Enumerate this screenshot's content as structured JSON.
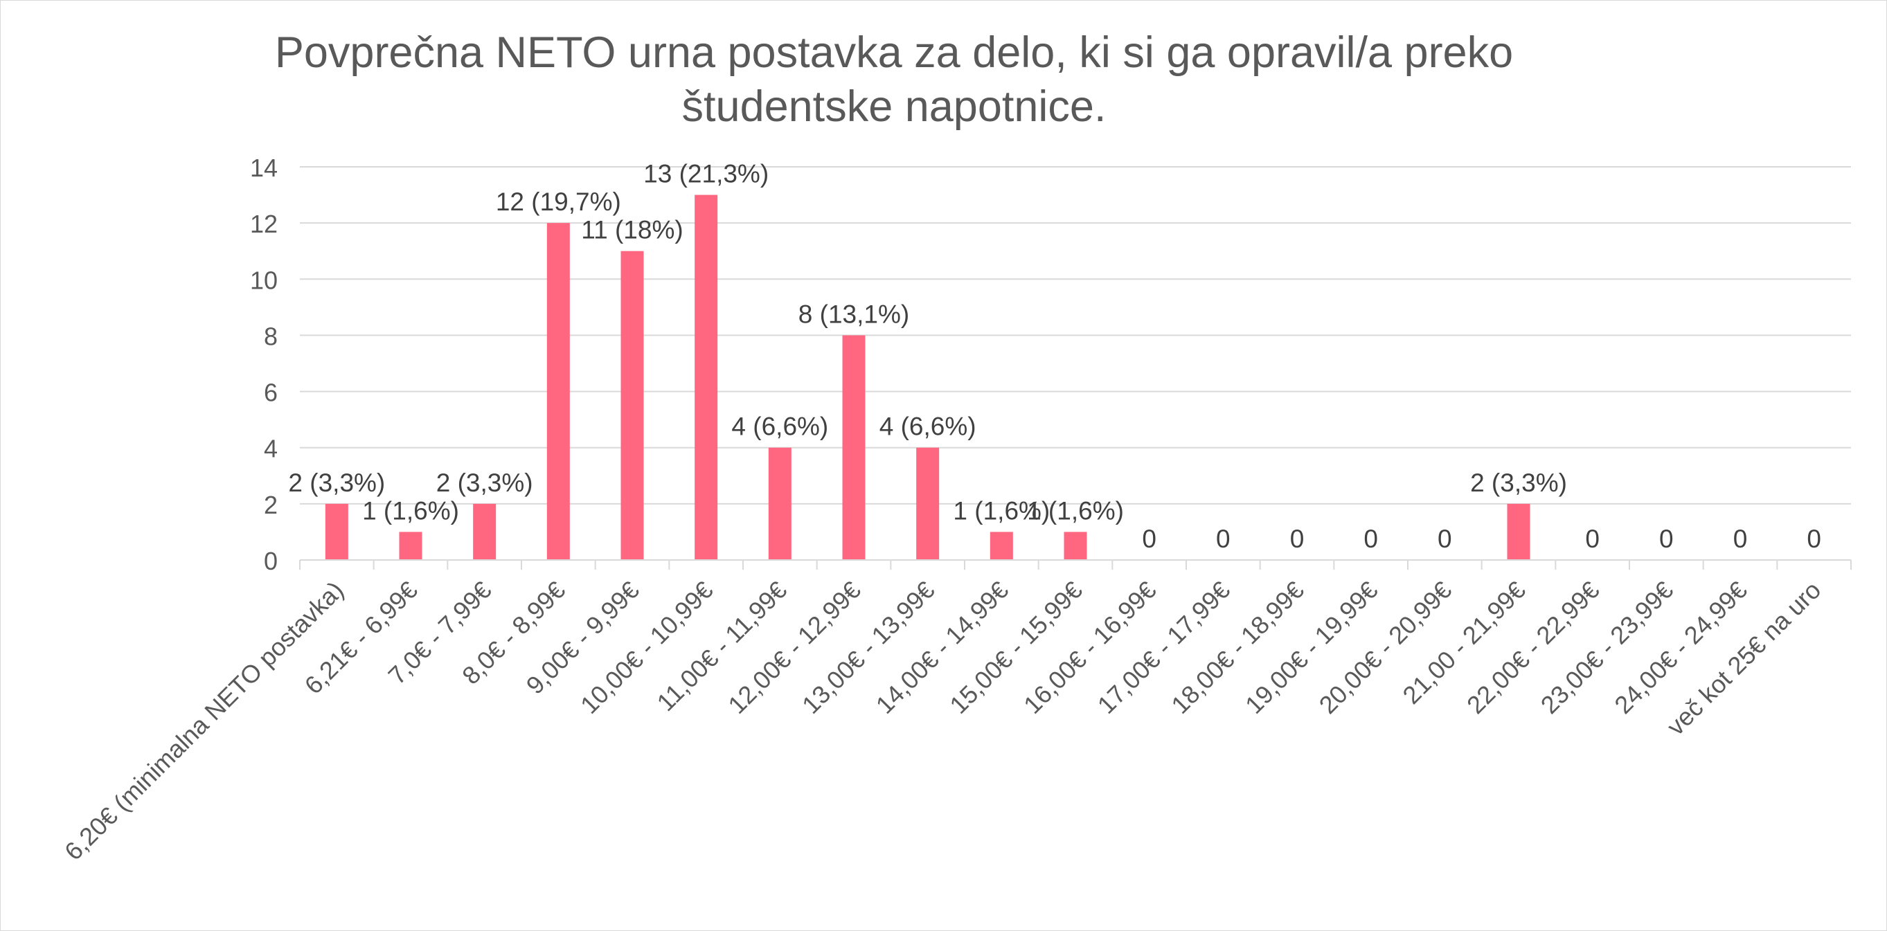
{
  "chart_data": {
    "type": "bar",
    "title": "Povprečna NETO urna postavka za delo, ki si ga opravil/a preko študentske napotnice.",
    "categories": [
      "6,20€ (minimalna NETO postavka)",
      "6,21€ - 6,99€",
      "7,0€ - 7,99€",
      "8,0€ - 8,99€",
      "9,00€ - 9,99€",
      "10,00€ - 10,99€",
      "11,00€ - 11,99€",
      "12,00€ - 12,99€",
      "13,00€ - 13,99€",
      "14,00€ - 14,99€",
      "15,00€ - 15,99€",
      "16,00€ - 16,99€",
      "17,00€ - 17,99€",
      "18,00€ - 18,99€",
      "19,00€ - 19,99€",
      "20,00€ - 20,99€",
      "21,00 - 21,99€",
      "22,00€ - 22,99€",
      "23,00€ - 23,99€",
      "24,00€ - 24,99€",
      "več kot 25€ na uro"
    ],
    "values": [
      2,
      1,
      2,
      12,
      11,
      13,
      4,
      8,
      4,
      1,
      1,
      0,
      0,
      0,
      0,
      0,
      2,
      0,
      0,
      0,
      0
    ],
    "data_labels": [
      "2 (3,3%)",
      "1 (1,6%)",
      "2 (3,3%)",
      "12 (19,7%)",
      "11 (18%)",
      "13 (21,3%)",
      "4 (6,6%)",
      "8 (13,1%)",
      "4 (6,6%)",
      "1 (1,6%)",
      "1 (1,6%)",
      "0",
      "0",
      "0",
      "0",
      "0",
      "2 (3,3%)",
      "0",
      "0",
      "0",
      "0"
    ],
    "y_ticks": [
      "0",
      "2",
      "4",
      "6",
      "8",
      "10",
      "12",
      "14"
    ],
    "xlabel": "",
    "ylabel": "",
    "ylim": [
      0,
      14
    ],
    "grid": true,
    "legend": "none",
    "bar_color": "#ff6680",
    "grid_color": "#d9d9d9",
    "text_color": "#595959",
    "label_color": "#404040"
  }
}
